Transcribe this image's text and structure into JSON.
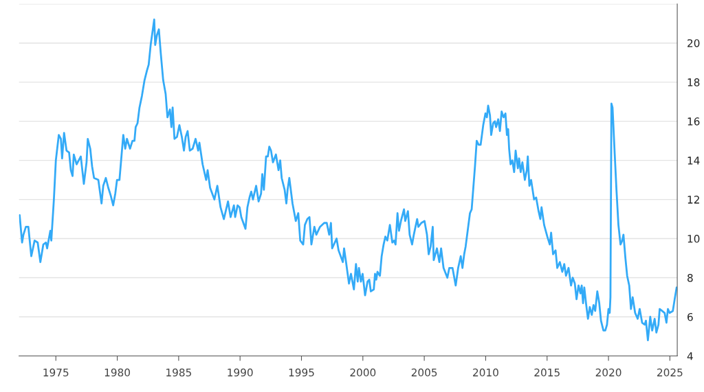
{
  "chart_data": {
    "type": "line",
    "x": [
      1972.05,
      1972.25,
      1972.36,
      1972.56,
      1972.76,
      1973.0,
      1973.27,
      1973.52,
      1973.74,
      1973.98,
      1974.19,
      1974.29,
      1974.55,
      1974.63,
      1974.84,
      1975.0,
      1975.24,
      1975.41,
      1975.51,
      1975.67,
      1975.87,
      1976.08,
      1976.22,
      1976.36,
      1976.46,
      1976.69,
      1977.03,
      1977.28,
      1977.5,
      1977.6,
      1977.8,
      1977.95,
      1978.11,
      1978.46,
      1978.72,
      1978.86,
      1979.07,
      1979.27,
      1979.47,
      1979.67,
      1979.84,
      1979.98,
      1980.18,
      1980.49,
      1980.65,
      1980.79,
      1981.04,
      1981.24,
      1981.4,
      1981.5,
      1981.65,
      1981.81,
      1982.01,
      1982.22,
      1982.42,
      1982.56,
      1982.72,
      1983.01,
      1983.09,
      1983.23,
      1983.39,
      1983.54,
      1983.74,
      1983.94,
      1984.09,
      1984.29,
      1984.41,
      1984.51,
      1984.66,
      1984.86,
      1985.06,
      1985.26,
      1985.43,
      1985.57,
      1985.73,
      1985.91,
      1986.14,
      1986.38,
      1986.59,
      1986.69,
      1986.95,
      1987.24,
      1987.36,
      1987.56,
      1987.91,
      1988.15,
      1988.41,
      1988.68,
      1989.02,
      1989.23,
      1989.5,
      1989.6,
      1989.8,
      1989.96,
      1990.1,
      1990.44,
      1990.6,
      1990.77,
      1990.91,
      1991.05,
      1991.31,
      1991.51,
      1991.71,
      1991.81,
      1991.94,
      1992.12,
      1992.26,
      1992.38,
      1992.52,
      1992.68,
      1992.92,
      1993.13,
      1993.27,
      1993.39,
      1993.63,
      1993.77,
      1993.87,
      1994.01,
      1994.27,
      1994.54,
      1994.74,
      1994.9,
      1995.14,
      1995.28,
      1995.48,
      1995.65,
      1995.81,
      1996.05,
      1996.21,
      1996.51,
      1996.85,
      1997.06,
      1997.26,
      1997.4,
      1997.5,
      1997.86,
      1998.02,
      1998.37,
      1998.47,
      1998.63,
      1998.87,
      1999.03,
      1999.27,
      1999.44,
      1999.58,
      1999.68,
      1999.84,
      1999.98,
      2000.18,
      2000.38,
      2000.52,
      2000.65,
      2000.89,
      2000.99,
      2001.09,
      2001.19,
      2001.39,
      2001.53,
      2001.69,
      2001.83,
      2001.99,
      2002.2,
      2002.4,
      2002.54,
      2002.66,
      2002.82,
      2002.94,
      2003.1,
      2003.35,
      2003.45,
      2003.67,
      2003.81,
      2004.01,
      2004.15,
      2004.42,
      2004.52,
      2004.76,
      2005.02,
      2005.22,
      2005.36,
      2005.52,
      2005.69,
      2005.77,
      2006.03,
      2006.23,
      2006.37,
      2006.57,
      2006.88,
      2007.04,
      2007.3,
      2007.56,
      2007.76,
      2007.97,
      2008.11,
      2008.25,
      2008.37,
      2008.72,
      2008.86,
      2009.13,
      2009.27,
      2009.43,
      2009.59,
      2009.8,
      2009.98,
      2010.1,
      2010.2,
      2010.35,
      2010.45,
      2010.61,
      2010.75,
      2010.85,
      2011.02,
      2011.16,
      2011.3,
      2011.46,
      2011.61,
      2011.73,
      2011.83,
      2011.91,
      2012.03,
      2012.17,
      2012.32,
      2012.44,
      2012.62,
      2012.72,
      2012.85,
      2012.99,
      2013.19,
      2013.35,
      2013.43,
      2013.56,
      2013.7,
      2013.94,
      2014.11,
      2014.31,
      2014.45,
      2014.55,
      2014.76,
      2015.02,
      2015.22,
      2015.33,
      2015.49,
      2015.69,
      2015.83,
      2016.04,
      2016.24,
      2016.4,
      2016.54,
      2016.75,
      2016.95,
      2017.09,
      2017.26,
      2017.4,
      2017.56,
      2017.72,
      2017.82,
      2017.93,
      2018.03,
      2018.17,
      2018.33,
      2018.48,
      2018.64,
      2018.78,
      2018.92,
      2019.09,
      2019.25,
      2019.39,
      2019.59,
      2019.74,
      2019.88,
      2020.0,
      2020.1,
      2020.16,
      2020.24,
      2020.33,
      2020.51,
      2020.65,
      2020.81,
      2020.98,
      2021.12,
      2021.22,
      2021.38,
      2021.52,
      2021.69,
      2021.83,
      2021.97,
      2022.17,
      2022.38,
      2022.54,
      2022.74,
      2022.95,
      2023.05,
      2023.21,
      2023.4,
      2023.56,
      2023.76,
      2023.9,
      2024.07,
      2024.17,
      2024.37,
      2024.57,
      2024.72,
      2024.84,
      2024.98,
      2025.24,
      2025.39,
      2025.55
    ],
    "values": [
      11.2,
      9.8,
      10.2,
      10.6,
      10.6,
      9.1,
      9.9,
      9.8,
      8.8,
      9.7,
      9.8,
      9.5,
      10.4,
      9.9,
      12.0,
      14.0,
      15.3,
      15.1,
      14.1,
      15.4,
      14.5,
      14.4,
      13.5,
      13.2,
      14.3,
      13.8,
      14.2,
      12.8,
      13.9,
      15.1,
      14.6,
      13.7,
      13.1,
      13.0,
      11.8,
      12.7,
      13.1,
      12.6,
      12.2,
      11.7,
      12.3,
      13.0,
      13.0,
      15.3,
      14.6,
      15.1,
      14.6,
      15.0,
      15.0,
      15.7,
      15.9,
      16.7,
      17.3,
      18.1,
      18.6,
      18.9,
      19.9,
      21.2,
      19.9,
      20.4,
      20.7,
      19.5,
      18.1,
      17.4,
      16.2,
      16.6,
      15.7,
      16.7,
      15.1,
      15.2,
      15.8,
      15.2,
      14.5,
      15.2,
      15.5,
      14.5,
      14.6,
      15.1,
      14.5,
      14.9,
      13.8,
      13.0,
      13.5,
      12.6,
      12.0,
      12.7,
      11.6,
      11.0,
      11.9,
      11.1,
      11.7,
      11.1,
      11.7,
      11.6,
      11.1,
      10.5,
      11.6,
      12.1,
      12.4,
      12.0,
      12.7,
      11.9,
      12.3,
      13.3,
      12.5,
      14.2,
      14.2,
      14.7,
      14.5,
      13.9,
      14.3,
      13.5,
      14.0,
      13.1,
      12.5,
      11.8,
      12.5,
      13.1,
      11.8,
      10.9,
      11.3,
      9.9,
      9.7,
      10.7,
      11.0,
      11.1,
      9.7,
      10.6,
      10.2,
      10.6,
      10.8,
      10.8,
      10.2,
      10.8,
      9.5,
      10.0,
      9.4,
      8.8,
      9.5,
      8.8,
      7.7,
      8.2,
      7.4,
      8.7,
      7.8,
      8.5,
      7.8,
      8.2,
      7.1,
      7.8,
      7.9,
      7.3,
      7.4,
      8.2,
      7.9,
      8.3,
      8.1,
      9.1,
      9.7,
      10.1,
      9.9,
      10.7,
      9.8,
      9.9,
      9.7,
      11.3,
      10.4,
      10.9,
      11.5,
      10.9,
      11.4,
      10.2,
      9.7,
      10.2,
      11.0,
      10.6,
      10.8,
      10.9,
      10.2,
      9.2,
      9.6,
      10.6,
      8.9,
      9.5,
      8.8,
      9.5,
      8.5,
      8.0,
      8.5,
      8.5,
      7.6,
      8.5,
      9.1,
      8.5,
      9.2,
      9.6,
      11.3,
      11.5,
      13.7,
      15.0,
      14.8,
      14.8,
      15.8,
      16.4,
      16.2,
      16.8,
      16.3,
      15.3,
      15.9,
      16.0,
      15.7,
      16.1,
      15.5,
      16.5,
      16.2,
      16.4,
      15.3,
      15.6,
      14.6,
      13.8,
      14.0,
      13.4,
      14.5,
      13.6,
      14.1,
      13.4,
      13.9,
      13.0,
      13.5,
      14.2,
      12.7,
      13.0,
      12.0,
      12.1,
      11.4,
      11.0,
      11.6,
      10.7,
      10.1,
      9.7,
      10.3,
      9.2,
      9.4,
      8.5,
      8.8,
      8.3,
      8.7,
      8.1,
      8.5,
      7.6,
      8.0,
      7.7,
      6.9,
      7.6,
      7.2,
      7.6,
      6.7,
      7.5,
      6.7,
      5.9,
      6.5,
      6.1,
      6.6,
      6.3,
      7.3,
      6.7,
      5.8,
      5.3,
      5.3,
      5.6,
      6.4,
      6.2,
      7.0,
      16.9,
      16.7,
      14.3,
      12.5,
      10.7,
      9.7,
      9.9,
      10.2,
      9.0,
      8.1,
      7.6,
      6.4,
      7.0,
      6.2,
      5.9,
      6.4,
      5.7,
      5.6,
      5.8,
      4.8,
      6.0,
      5.3,
      5.9,
      5.2,
      5.6,
      6.4,
      6.3,
      6.2,
      5.7,
      6.4,
      6.2,
      6.3,
      6.9,
      7.5
    ],
    "color": "#33aaf7",
    "xlim": [
      1972.0,
      2025.6
    ],
    "xticks": [
      1975,
      1980,
      1985,
      1990,
      1995,
      2000,
      2005,
      2010,
      2015,
      2020,
      2025
    ],
    "ylim": [
      4,
      22
    ],
    "yticks": [
      4,
      6,
      8,
      10,
      12,
      14,
      16,
      18,
      20,
      {
        "value": 22,
        "label": null
      }
    ],
    "grid": "y",
    "marker": "none",
    "line_style": "solid"
  }
}
